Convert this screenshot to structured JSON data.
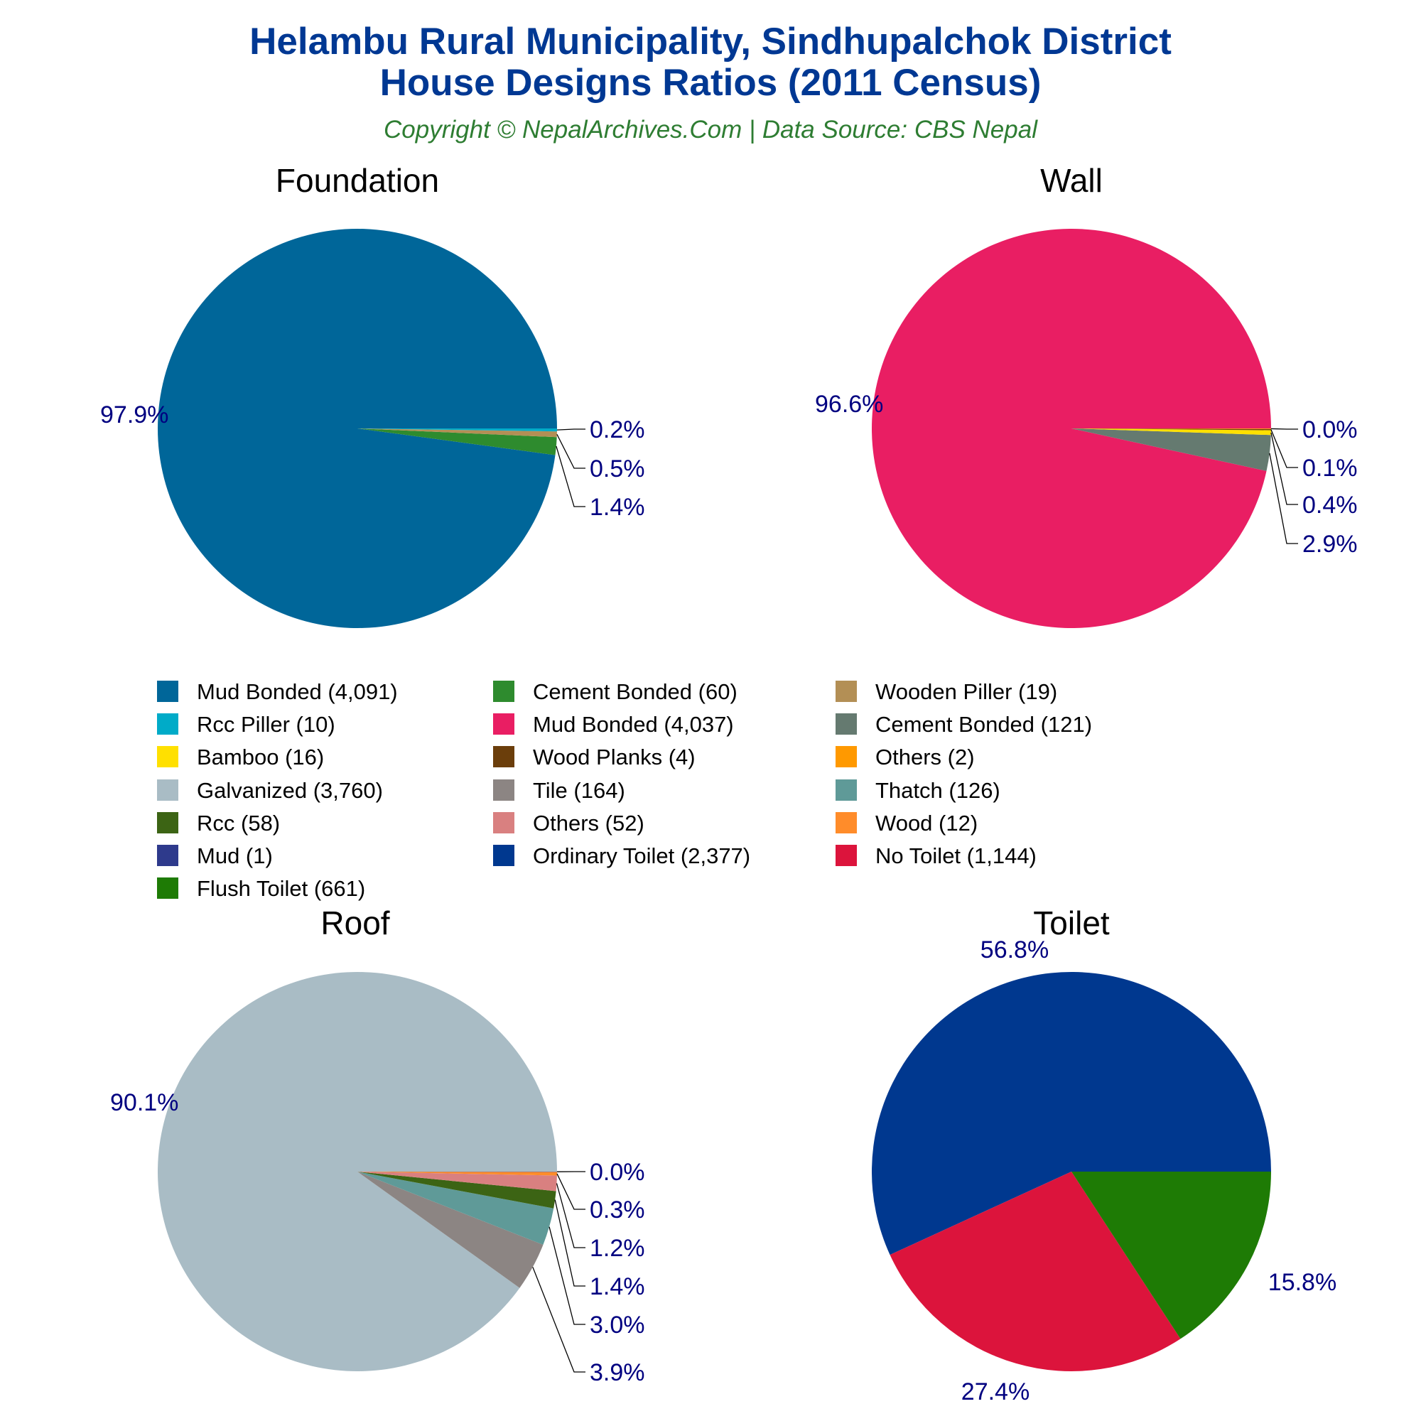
{
  "title_line1": "Helambu Rural Municipality, Sindhupalchok District",
  "title_line2": "House Designs Ratios (2011 Census)",
  "copyright": "Copyright © NepalArchives.Com | Data Source: CBS Nepal",
  "chart_data": [
    {
      "type": "pie",
      "title": "Foundation",
      "direction": "counterclockwise",
      "start": "3 o'clock",
      "labels": [
        "Mud Bonded",
        "Cement Bonded",
        "Wooden Piller",
        "Rcc Piller"
      ],
      "values": [
        4091,
        60,
        19,
        10
      ],
      "percent_labels": [
        "97.9%",
        "1.4%",
        "0.5%",
        "0.2%"
      ],
      "colors": [
        "#006699",
        "#2e8b2e",
        "#b38f55",
        "#00abc8"
      ]
    },
    {
      "type": "pie",
      "title": "Wall",
      "direction": "counterclockwise",
      "start": "3 o'clock",
      "labels": [
        "Mud Bonded",
        "Cement Bonded",
        "Bamboo",
        "Wood Planks",
        "Others"
      ],
      "values": [
        4037,
        121,
        16,
        4,
        2
      ],
      "percent_labels": [
        "96.6%",
        "2.9%",
        "0.4%",
        "0.1%",
        "0.0%"
      ],
      "colors": [
        "#e91e63",
        "#657a70",
        "#ffe000",
        "#6b3e0b",
        "#ff9900"
      ]
    },
    {
      "type": "pie",
      "title": "Roof",
      "direction": "counterclockwise",
      "start": "3 o'clock",
      "labels": [
        "Galvanized",
        "Tile",
        "Thatch",
        "Rcc",
        "Others",
        "Wood",
        "Mud"
      ],
      "values": [
        3760,
        164,
        126,
        58,
        52,
        12,
        1
      ],
      "percent_labels": [
        "90.1%",
        "3.9%",
        "3.0%",
        "1.4%",
        "1.2%",
        "0.3%",
        "0.0%"
      ],
      "colors": [
        "#a9bcc5",
        "#8c8583",
        "#5f9a98",
        "#3c6414",
        "#d98080",
        "#ff8c2a",
        "#2e3a8c"
      ]
    },
    {
      "type": "pie",
      "title": "Toilet",
      "direction": "counterclockwise",
      "start": "3 o'clock",
      "labels": [
        "Ordinary Toilet",
        "No Toilet",
        "Flush Toilet"
      ],
      "values": [
        2377,
        1144,
        661
      ],
      "percent_labels": [
        "56.8%",
        "27.4%",
        "15.8%"
      ],
      "colors": [
        "#00388f",
        "#dc143c",
        "#1e7b05"
      ]
    }
  ],
  "legend": [
    {
      "label": "Mud Bonded (4,091)",
      "color": "#006699"
    },
    {
      "label": "Cement Bonded (60)",
      "color": "#2e8b2e"
    },
    {
      "label": "Wooden Piller (19)",
      "color": "#b38f55"
    },
    {
      "label": "Rcc Piller (10)",
      "color": "#00abc8"
    },
    {
      "label": "Mud Bonded (4,037)",
      "color": "#e91e63"
    },
    {
      "label": "Cement Bonded (121)",
      "color": "#657a70"
    },
    {
      "label": "Bamboo (16)",
      "color": "#ffe000"
    },
    {
      "label": "Wood Planks (4)",
      "color": "#6b3e0b"
    },
    {
      "label": "Others (2)",
      "color": "#ff9900"
    },
    {
      "label": "Galvanized (3,760)",
      "color": "#a9bcc5"
    },
    {
      "label": "Tile (164)",
      "color": "#8c8583"
    },
    {
      "label": "Thatch (126)",
      "color": "#5f9a98"
    },
    {
      "label": "Rcc (58)",
      "color": "#3c6414"
    },
    {
      "label": "Others (52)",
      "color": "#d98080"
    },
    {
      "label": "Wood (12)",
      "color": "#ff8c2a"
    },
    {
      "label": "Mud (1)",
      "color": "#2e3a8c"
    },
    {
      "label": "Ordinary Toilet (2,377)",
      "color": "#00388f"
    },
    {
      "label": "No Toilet (1,144)",
      "color": "#dc143c"
    },
    {
      "label": "Flush Toilet (661)",
      "color": "#1e7b05"
    }
  ]
}
